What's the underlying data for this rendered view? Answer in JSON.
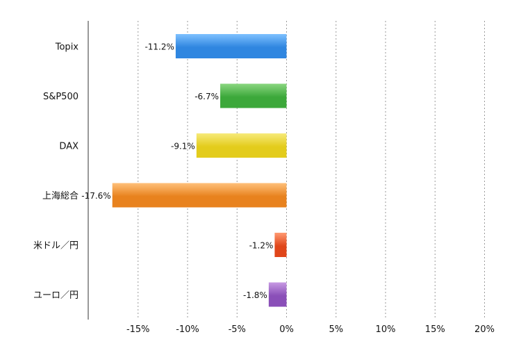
{
  "chart_data": {
    "type": "bar",
    "orientation": "horizontal",
    "categories": [
      "Topix",
      "S&P500",
      "DAX",
      "上海総合",
      "米ドル／円",
      "ユーロ／円"
    ],
    "values": [
      -11.2,
      -6.7,
      -9.1,
      -17.6,
      -1.2,
      -1.8
    ],
    "value_labels": [
      "-11.2%",
      "-6.7%",
      "-9.1%",
      "-17.6%",
      "-1.2%",
      "-1.8%"
    ],
    "bar_colors": [
      "#2f86e0",
      "#3ca83a",
      "#e3cc1c",
      "#e8821e",
      "#e0461a",
      "#8a4fb8"
    ],
    "bar_highlights": [
      "#7ec0ff",
      "#8ad680",
      "#f7ea7a",
      "#ffc07a",
      "#ff9a72",
      "#c79ae3"
    ],
    "x_ticks": [
      -15,
      -10,
      -5,
      0,
      5,
      10,
      15,
      20
    ],
    "x_tick_labels": [
      "-15%",
      "-10%",
      "-5%",
      "0%",
      "5%",
      "10%",
      "15%",
      "20%"
    ],
    "xlim": [
      -20,
      20
    ],
    "grid": true,
    "title": "",
    "xlabel": "",
    "ylabel": ""
  }
}
